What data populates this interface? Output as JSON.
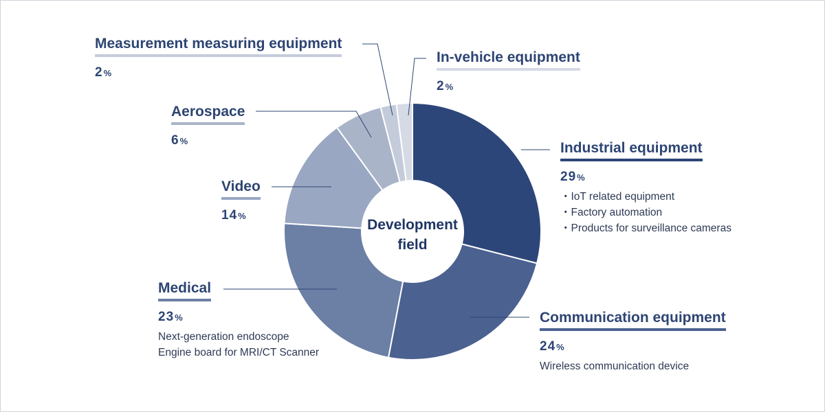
{
  "chart_data": {
    "type": "pie",
    "variant": "donut",
    "center_label": [
      "Development",
      "field"
    ],
    "percent_symbol": "%",
    "slices": [
      {
        "name": "Industrial equipment",
        "value": 29,
        "color": "#2d4679",
        "details": [
          "・IoT related equipment",
          "・Factory automation",
          "・Products for surveillance cameras"
        ]
      },
      {
        "name": "Communication equipment",
        "value": 24,
        "color": "#4b6190",
        "details": [
          "Wireless communication device"
        ]
      },
      {
        "name": "Medical",
        "value": 23,
        "color": "#6c7fa5",
        "details": [
          "Next-generation endoscope",
          "Engine board for MRI/CT Scanner"
        ]
      },
      {
        "name": "Video",
        "value": 14,
        "color": "#99a7c2",
        "details": []
      },
      {
        "name": "Aerospace",
        "value": 6,
        "color": "#aab4c9",
        "details": []
      },
      {
        "name": "Measurement measuring equipment",
        "value": 2,
        "color": "#c4cbda",
        "details": []
      },
      {
        "name": "In-vehicle equipment",
        "value": 2,
        "color": "#d5dae5",
        "details": []
      }
    ]
  }
}
